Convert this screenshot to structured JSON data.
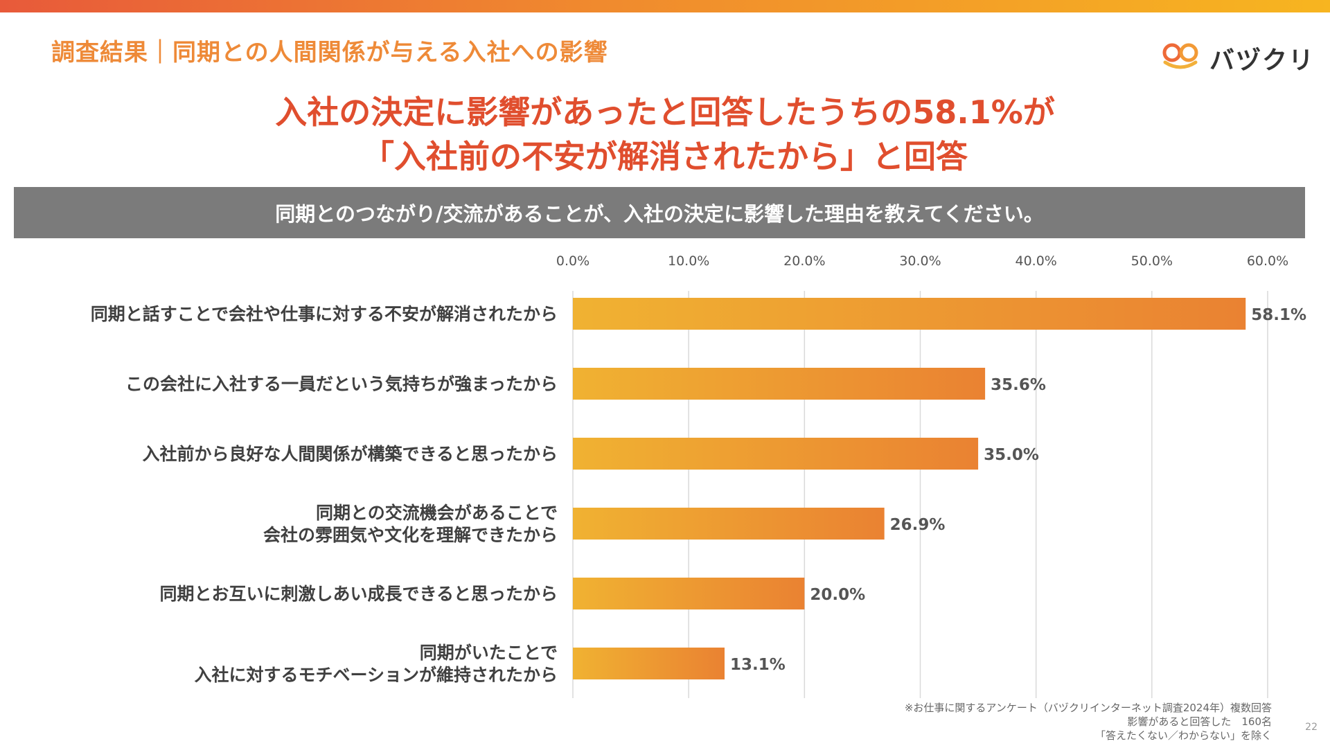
{
  "header": {
    "section_title": "調査結果｜同期との人間関係が与える入社への影響",
    "brand": "バヅクリ",
    "brand_icon": "bazukuri-logo-icon",
    "accent_color": "#ee8a38"
  },
  "headline": {
    "line1": "入社の決定に影響があったと回答したうちの58.1%が",
    "line2": "「入社前の不安が解消されたから」と回答"
  },
  "question": "同期とのつながり/交流があることが、入社の決定に影響した理由を教えてください。",
  "chart_data": {
    "type": "bar",
    "orientation": "horizontal",
    "categories": [
      [
        "同期と話すことで会社や仕事に対する不安が解消されたから"
      ],
      [
        "この会社に入社する一員だという気持ちが強まったから"
      ],
      [
        "入社前から良好な人間関係が構築できると思ったから"
      ],
      [
        "同期との交流機会があることで",
        "会社の雰囲気や文化を理解できたから"
      ],
      [
        "同期とお互いに刺激しあい成長できると思ったから"
      ],
      [
        "同期がいたことで",
        "入社に対するモチベーションが維持されたから"
      ]
    ],
    "values": [
      58.1,
      35.6,
      35.0,
      26.9,
      20.0,
      13.1
    ],
    "value_labels": [
      "58.1%",
      "35.6%",
      "35.0%",
      "26.9%",
      "20.0%",
      "13.1%"
    ],
    "xlim": [
      0,
      60
    ],
    "ticks": [
      0,
      10,
      20,
      30,
      40,
      50,
      60
    ],
    "tick_labels": [
      "0.0%",
      "10.0%",
      "20.0%",
      "30.0%",
      "40.0%",
      "50.0%",
      "60.0%"
    ],
    "axis_position": "top",
    "grid": true,
    "bar_gradient": [
      "#f0b232",
      "#ea8232"
    ]
  },
  "footnote": {
    "line1": "※お仕事に関するアンケート（バヅクリインターネット調査2024年）複数回答",
    "line2": "影響があると回答した　160名",
    "line3": "「答えたくない／わからない」を除く"
  },
  "page_number": "22"
}
